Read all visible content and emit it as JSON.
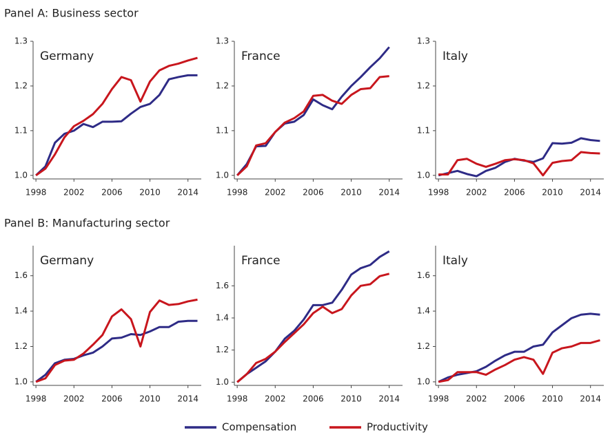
{
  "panel_titles": [
    "Panel A: Business sector",
    "Panel B: Manufacturing sector"
  ],
  "chart_data": [
    {
      "type": "line",
      "title": "Germany",
      "x": [
        1998,
        1999,
        2000,
        2001,
        2002,
        2003,
        2004,
        2005,
        2006,
        2007,
        2008,
        2009,
        2010,
        2011,
        2012,
        2013,
        2014,
        2015
      ],
      "xlim": [
        1997.7,
        2015.4
      ],
      "xticks": [
        1998,
        2002,
        2006,
        2010,
        2014
      ],
      "ylim": [
        0.992,
        1.3
      ],
      "yticks": [
        {
          "value": 1,
          "label": "1.0"
        },
        1.1,
        1.2,
        1.3
      ],
      "series": [
        {
          "name": "Compensation",
          "color": "#2e2b86",
          "values": [
            1.0,
            1.02,
            1.073,
            1.093,
            1.1,
            1.115,
            1.108,
            1.12,
            1.12,
            1.121,
            1.138,
            1.153,
            1.16,
            1.18,
            1.215,
            1.22,
            1.224,
            1.224
          ]
        },
        {
          "name": "Productivity",
          "color": "#c8161d",
          "values": [
            1.0,
            1.015,
            1.047,
            1.085,
            1.11,
            1.122,
            1.137,
            1.16,
            1.193,
            1.22,
            1.213,
            1.165,
            1.21,
            1.235,
            1.245,
            1.25,
            1.257,
            1.263
          ]
        }
      ]
    },
    {
      "type": "line",
      "title": "France",
      "x": [
        1998,
        1999,
        2000,
        2001,
        2002,
        2003,
        2004,
        2005,
        2006,
        2007,
        2008,
        2009,
        2010,
        2011,
        2012,
        2013,
        2014,
        2015
      ],
      "xlim": [
        1997.7,
        2015.4
      ],
      "xticks": [
        1998,
        2002,
        2006,
        2010,
        2014
      ],
      "ylim": [
        0.992,
        1.3
      ],
      "yticks": [
        {
          "value": 1,
          "label": "1.0"
        },
        1.1,
        1.2,
        1.3
      ],
      "series": [
        {
          "name": "Compensation",
          "color": "#2e2b86",
          "values": [
            1.0,
            1.025,
            1.065,
            1.066,
            1.097,
            1.116,
            1.12,
            1.135,
            1.17,
            1.157,
            1.148,
            1.176,
            1.2,
            1.22,
            1.242,
            1.262,
            1.287,
            null
          ]
        },
        {
          "name": "Productivity",
          "color": "#c8161d",
          "values": [
            1.0,
            1.02,
            1.067,
            1.072,
            1.097,
            1.118,
            1.128,
            1.143,
            1.178,
            1.18,
            1.167,
            1.16,
            1.18,
            1.193,
            1.195,
            1.22,
            1.222,
            null
          ]
        }
      ]
    },
    {
      "type": "line",
      "title": "Italy",
      "x": [
        1998,
        1999,
        2000,
        2001,
        2002,
        2003,
        2004,
        2005,
        2006,
        2007,
        2008,
        2009,
        2010,
        2011,
        2012,
        2013,
        2014,
        2015
      ],
      "xlim": [
        1997.7,
        2015.4
      ],
      "xticks": [
        1998,
        2002,
        2006,
        2010,
        2014
      ],
      "ylim": [
        0.992,
        1.3
      ],
      "yticks": [
        {
          "value": 1,
          "label": "1.0"
        },
        1.1,
        1.2,
        1.3
      ],
      "series": [
        {
          "name": "Compensation",
          "color": "#2e2b86",
          "values": [
            1.0,
            1.005,
            1.01,
            1.003,
            0.998,
            1.01,
            1.017,
            1.03,
            1.037,
            1.033,
            1.03,
            1.038,
            1.072,
            1.071,
            1.073,
            1.083,
            1.079,
            1.077
          ]
        },
        {
          "name": "Productivity",
          "color": "#c8161d",
          "values": [
            1.002,
            1.002,
            1.034,
            1.037,
            1.026,
            1.019,
            1.026,
            1.034,
            1.036,
            1.034,
            1.027,
            1.0,
            1.028,
            1.032,
            1.034,
            1.052,
            1.05,
            1.049
          ]
        }
      ]
    },
    {
      "type": "line",
      "title": "Germany",
      "x": [
        1998,
        1999,
        2000,
        2001,
        2002,
        2003,
        2004,
        2005,
        2006,
        2007,
        2008,
        2009,
        2010,
        2011,
        2012,
        2013,
        2014,
        2015
      ],
      "xlim": [
        1997.7,
        2015.4
      ],
      "xticks": [
        1998,
        2002,
        2006,
        2010,
        2014
      ],
      "ylim": [
        0.98,
        1.77
      ],
      "yticks": [
        {
          "value": 1,
          "label": "1.0"
        },
        1.2,
        1.4,
        1.6
      ],
      "series": [
        {
          "name": "Compensation",
          "color": "#2e2b86",
          "values": [
            1.0,
            1.04,
            1.105,
            1.125,
            1.13,
            1.15,
            1.165,
            1.2,
            1.245,
            1.25,
            1.27,
            1.265,
            1.285,
            1.31,
            1.31,
            1.34,
            1.345,
            1.345
          ]
        },
        {
          "name": "Productivity",
          "color": "#c8161d",
          "values": [
            1.0,
            1.02,
            1.095,
            1.12,
            1.125,
            1.16,
            1.21,
            1.265,
            1.37,
            1.41,
            1.355,
            1.2,
            1.395,
            1.46,
            1.435,
            1.44,
            1.455,
            1.465
          ]
        }
      ]
    },
    {
      "type": "line",
      "title": "France",
      "x": [
        1998,
        1999,
        2000,
        2001,
        2002,
        2003,
        2004,
        2005,
        2006,
        2007,
        2008,
        2009,
        2010,
        2011,
        2012,
        2013,
        2014,
        2015
      ],
      "xlim": [
        1997.7,
        2015.4
      ],
      "xticks": [
        1998,
        2002,
        2006,
        2010,
        2014
      ],
      "ylim": [
        0.98,
        1.85
      ],
      "yticks": [
        {
          "value": 1,
          "label": "1.0"
        },
        1.2,
        1.4,
        1.6
      ],
      "series": [
        {
          "name": "Compensation",
          "color": "#2e2b86",
          "values": [
            1.0,
            1.05,
            1.09,
            1.13,
            1.19,
            1.27,
            1.32,
            1.39,
            1.48,
            1.48,
            1.495,
            1.575,
            1.67,
            1.71,
            1.73,
            1.78,
            1.815,
            null
          ]
        },
        {
          "name": "Productivity",
          "color": "#c8161d",
          "values": [
            1.0,
            1.05,
            1.12,
            1.145,
            1.19,
            1.25,
            1.305,
            1.36,
            1.43,
            1.47,
            1.43,
            1.455,
            1.54,
            1.6,
            1.61,
            1.66,
            1.675,
            null
          ]
        }
      ]
    },
    {
      "type": "line",
      "title": "Italy",
      "x": [
        1998,
        1999,
        2000,
        2001,
        2002,
        2003,
        2004,
        2005,
        2006,
        2007,
        2008,
        2009,
        2010,
        2011,
        2012,
        2013,
        2014,
        2015
      ],
      "xlim": [
        1997.7,
        2015.4
      ],
      "xticks": [
        1998,
        2002,
        2006,
        2010,
        2014
      ],
      "ylim": [
        0.98,
        1.77
      ],
      "yticks": [
        {
          "value": 1,
          "label": "1.0"
        },
        1.2,
        1.4,
        1.6
      ],
      "series": [
        {
          "name": "Compensation",
          "color": "#2e2b86",
          "values": [
            1.0,
            1.025,
            1.04,
            1.05,
            1.06,
            1.085,
            1.12,
            1.15,
            1.17,
            1.17,
            1.2,
            1.21,
            1.28,
            1.32,
            1.36,
            1.38,
            1.385,
            1.38
          ]
        },
        {
          "name": "Productivity",
          "color": "#c8161d",
          "values": [
            1.0,
            1.01,
            1.055,
            1.055,
            1.055,
            1.04,
            1.07,
            1.095,
            1.125,
            1.14,
            1.125,
            1.045,
            1.165,
            1.19,
            1.2,
            1.22,
            1.22,
            1.235
          ]
        }
      ]
    }
  ]
}
